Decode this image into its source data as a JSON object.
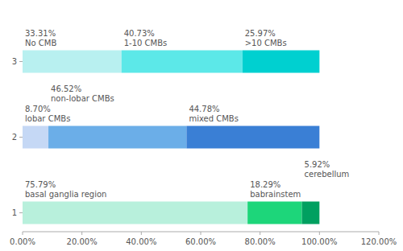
{
  "chart_data": {
    "type": "bar",
    "orientation": "horizontal",
    "stacked": true,
    "data_labels": true,
    "categories": [
      "1",
      "2",
      "3"
    ],
    "series": [
      {
        "values": [
          75.79,
          8.7,
          33.31
        ],
        "colors": [
          "#b8f0dc",
          "#c5d8f5",
          "#b8f0f0"
        ],
        "value_labels": [
          "75.79%\nbasal ganglia region",
          "8.70%\nlobar CMBs",
          "33.31%\nNo CMB"
        ]
      },
      {
        "values": [
          18.29,
          46.52,
          40.73
        ],
        "colors": [
          "#1dd67a",
          "#6baee8",
          "#5ce8e8"
        ],
        "value_labels": [
          "18.29%\nbabrainstem",
          "46.52%\nnon-lobar CMBs",
          "40.73%\n1-10 CMBs"
        ]
      },
      {
        "values": [
          5.92,
          44.78,
          25.97
        ],
        "colors": [
          "#00a060",
          "#3a7fd5",
          "#00d0d0"
        ],
        "value_labels": [
          "5.92%\ncerebellum",
          "44.78%\nmixed CMBs",
          "25.97%\n>10 CMBs"
        ]
      }
    ],
    "xlim": [
      0,
      120
    ],
    "xticks": [
      {
        "value": 0,
        "label": "0.00%"
      },
      {
        "value": 20,
        "label": "20.00%"
      },
      {
        "value": 40,
        "label": "40.00%"
      },
      {
        "value": 60,
        "label": "60.00%"
      },
      {
        "value": 80,
        "label": "80.00%"
      },
      {
        "value": 100,
        "label": "100.00%"
      },
      {
        "value": 120,
        "label": "120.00%"
      }
    ]
  }
}
